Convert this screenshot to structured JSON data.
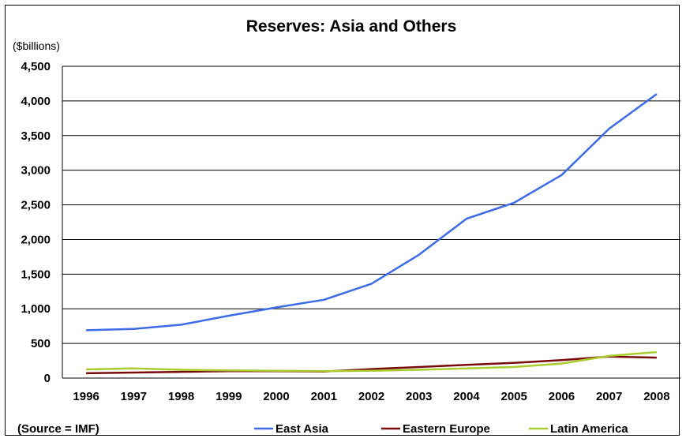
{
  "chart_data": {
    "type": "line",
    "title": "Reserves: Asia and Others",
    "unit_label": "($billions)",
    "source": "(Source = IMF)",
    "x": [
      "1996",
      "1997",
      "1998",
      "1999",
      "2000",
      "2001",
      "2002",
      "2003",
      "2004",
      "2005",
      "2006",
      "2007",
      "2008"
    ],
    "ylim": [
      0,
      4500
    ],
    "yticks": [
      0,
      500,
      1000,
      1500,
      2000,
      2500,
      3000,
      3500,
      4000,
      4500
    ],
    "ytick_labels": [
      "0",
      "500",
      "1,000",
      "1,500",
      "2,000",
      "2,500",
      "3,000",
      "3,500",
      "4,000",
      "4,500"
    ],
    "grid": true,
    "legend_position": "bottom",
    "series": [
      {
        "name": "East Asia",
        "color": "#3D6BE8",
        "values": [
          690,
          710,
          770,
          900,
          1020,
          1130,
          1360,
          1780,
          2300,
          2530,
          2930,
          3600,
          4100
        ]
      },
      {
        "name": "Eastern Europe",
        "color": "#7A0A0A",
        "values": [
          70,
          80,
          90,
          100,
          100,
          95,
          130,
          160,
          190,
          220,
          260,
          310,
          295
        ]
      },
      {
        "name": "Latin America",
        "color": "#A9CC2E",
        "values": [
          125,
          140,
          120,
          110,
          105,
          100,
          105,
          120,
          140,
          160,
          210,
          320,
          375
        ]
      }
    ]
  }
}
